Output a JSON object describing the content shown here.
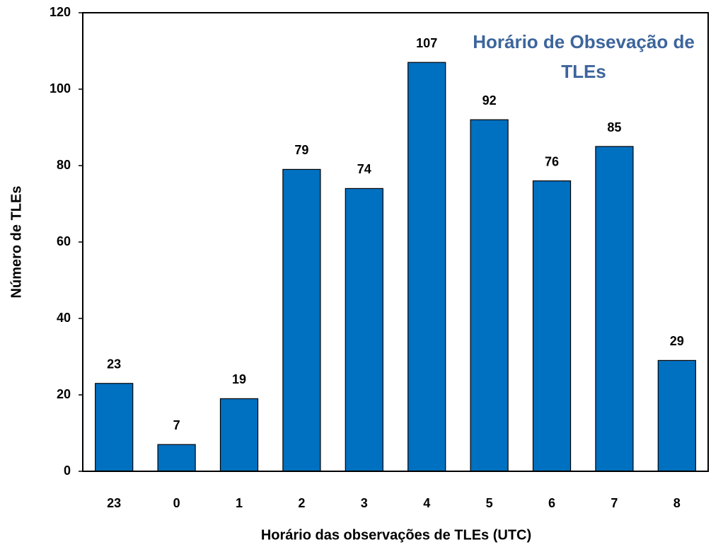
{
  "chart_data": {
    "type": "bar",
    "title": "Horário de Obsevação de TLEs",
    "xlabel": "Horário das observações de TLEs  (UTC)",
    "ylabel": "Número de TLEs",
    "categories": [
      "23",
      "0",
      "1",
      "2",
      "3",
      "4",
      "5",
      "6",
      "7",
      "8"
    ],
    "values": [
      23,
      7,
      19,
      79,
      74,
      107,
      92,
      76,
      85,
      29
    ],
    "color": "#0070c0",
    "ylim": [
      0,
      120
    ],
    "yticks": [
      0,
      20,
      40,
      60,
      80,
      100,
      120
    ],
    "grid": false
  }
}
